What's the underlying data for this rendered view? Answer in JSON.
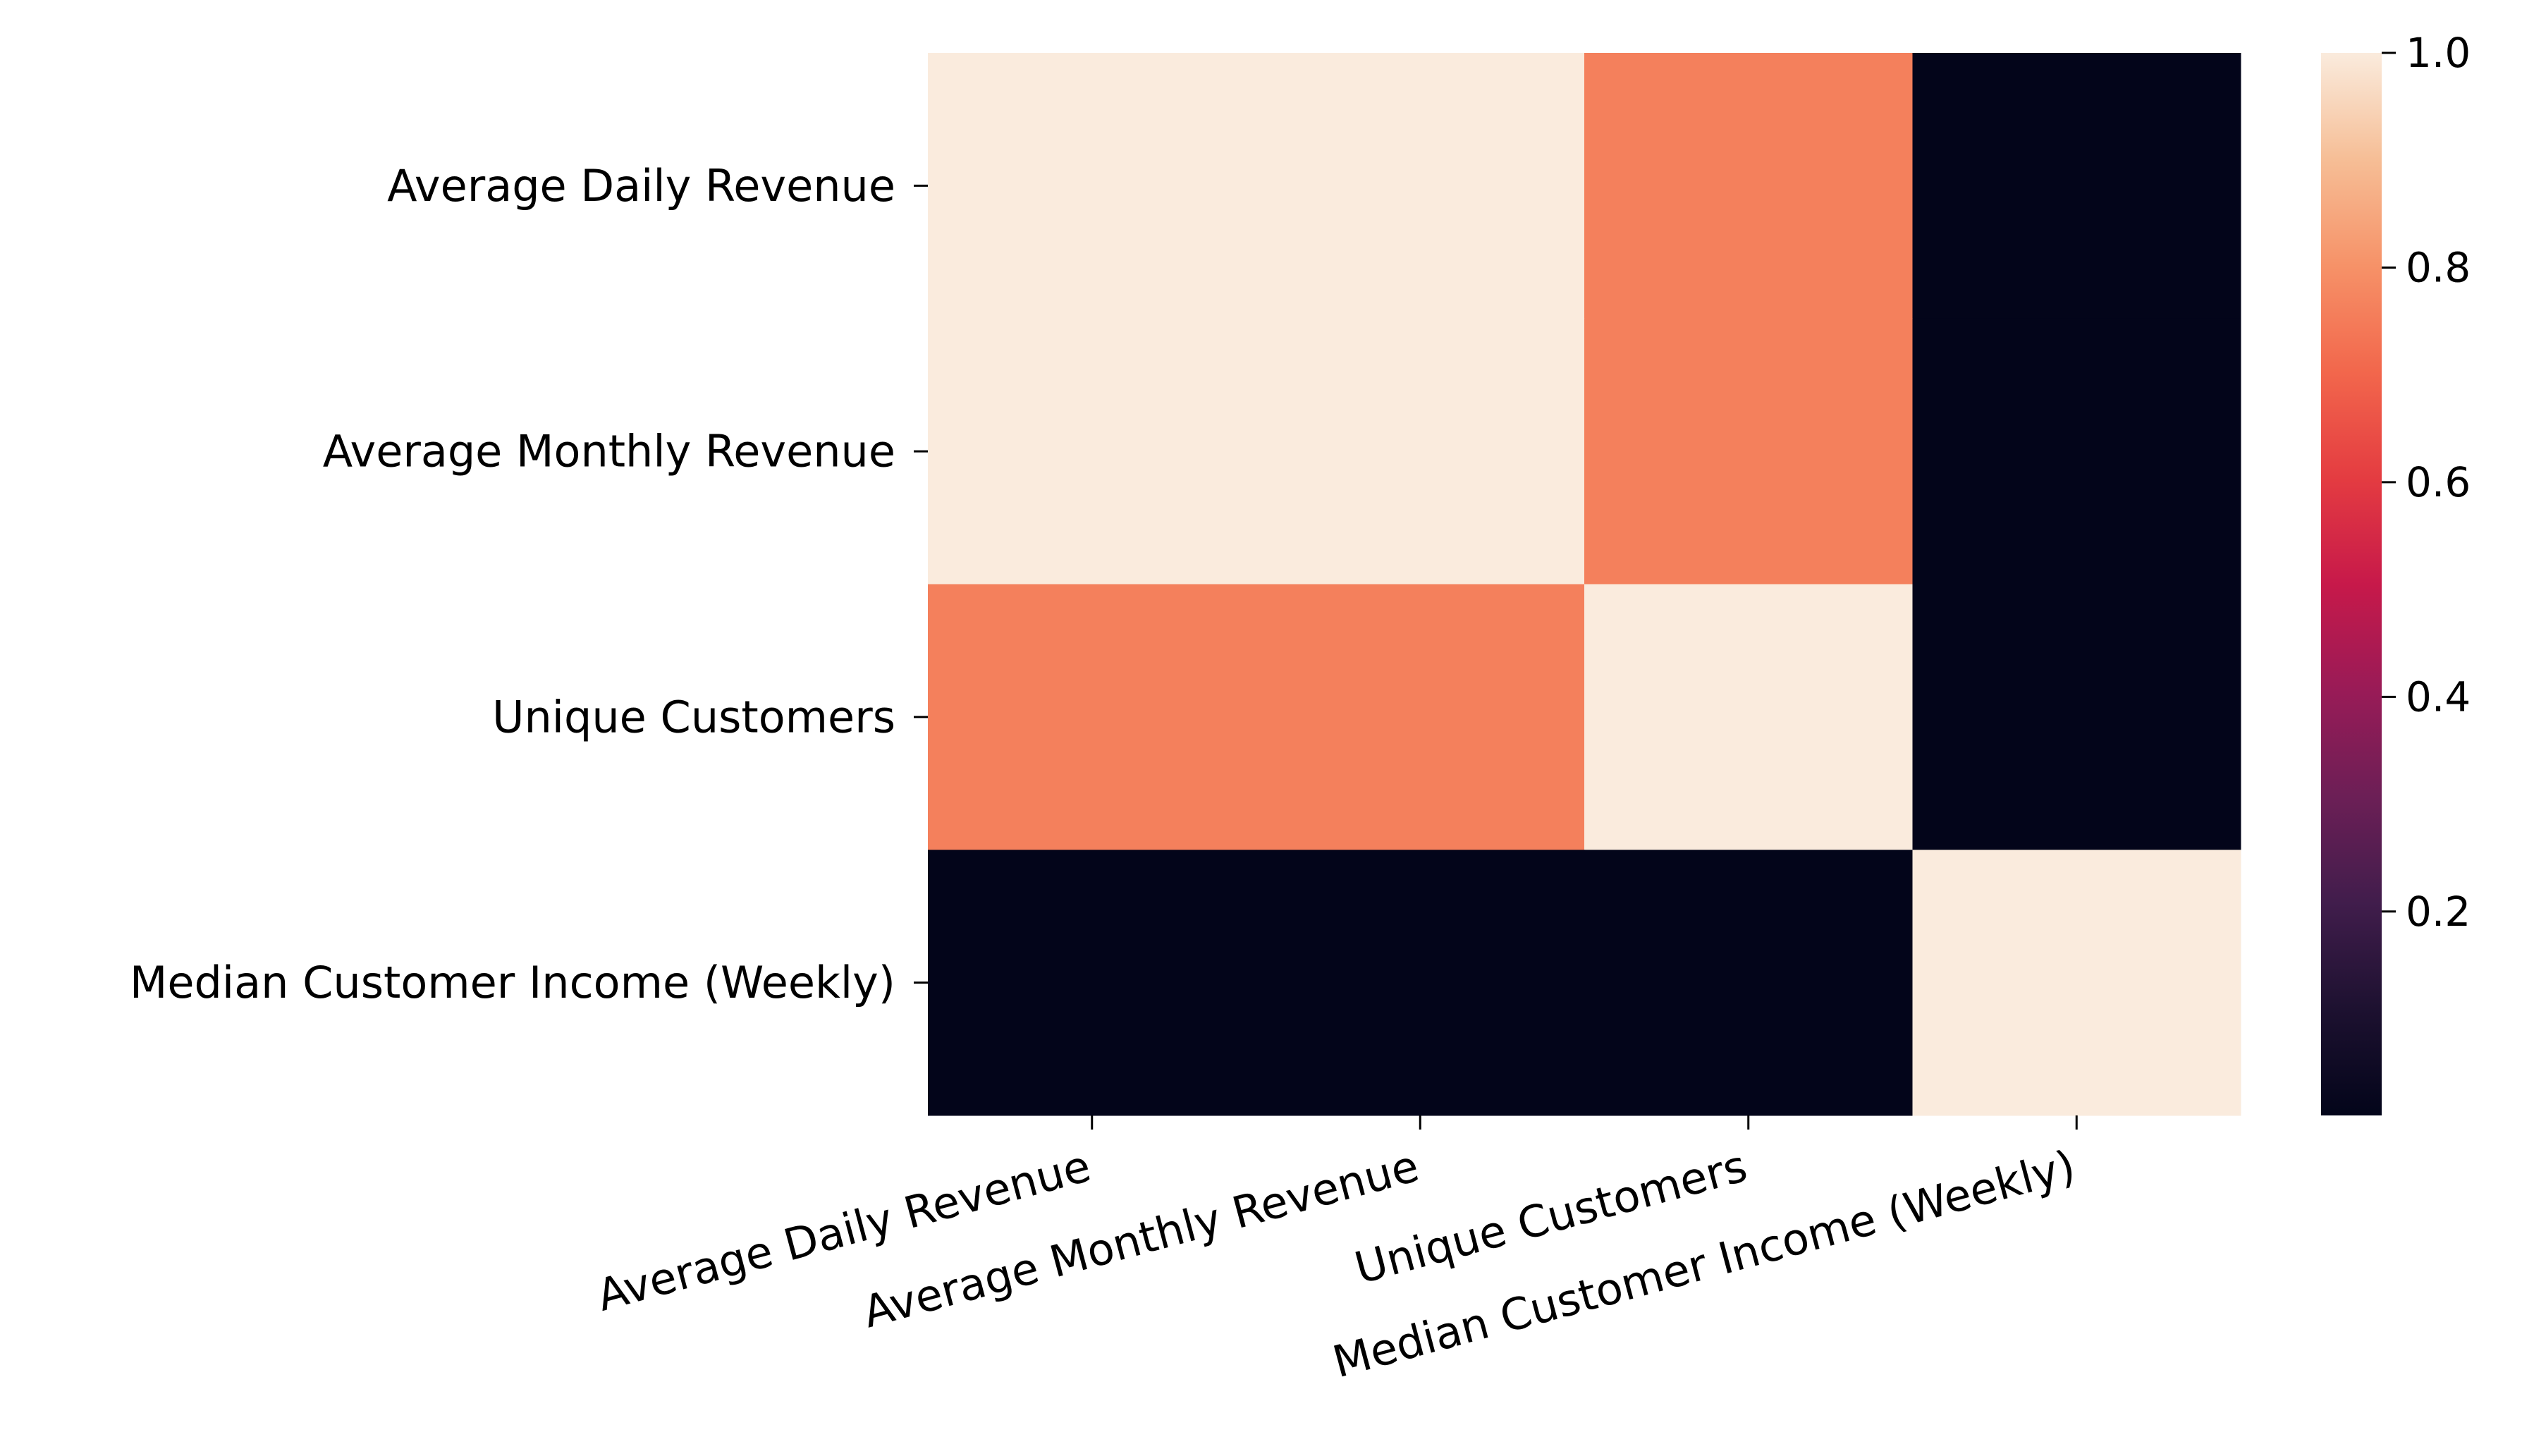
{
  "chart_data": {
    "type": "heatmap",
    "title": "",
    "xlabel": "",
    "ylabel": "",
    "x_categories": [
      "Average Daily Revenue",
      "Average Monthly Revenue",
      "Unique Customers",
      "Median Customer Income (Weekly)"
    ],
    "y_categories": [
      "Average Daily Revenue",
      "Average Monthly Revenue",
      "Unique Customers",
      "Median Customer Income (Weekly)"
    ],
    "values": [
      [
        1.0,
        1.0,
        0.76,
        0.01
      ],
      [
        1.0,
        1.0,
        0.76,
        0.01
      ],
      [
        0.76,
        0.76,
        1.0,
        0.01
      ],
      [
        0.01,
        0.01,
        0.01,
        1.0
      ]
    ],
    "colormap": "rocket",
    "colorbar": {
      "range": [
        0.01,
        1.0
      ],
      "ticks": [
        0.2,
        0.4,
        0.6,
        0.8,
        1.0
      ],
      "tick_labels": [
        "0.2",
        "0.4",
        "0.6",
        "0.8",
        "1.0"
      ],
      "position": "right"
    },
    "x_tick_rotation": 15,
    "grid": false,
    "legend": "colorbar-right"
  }
}
